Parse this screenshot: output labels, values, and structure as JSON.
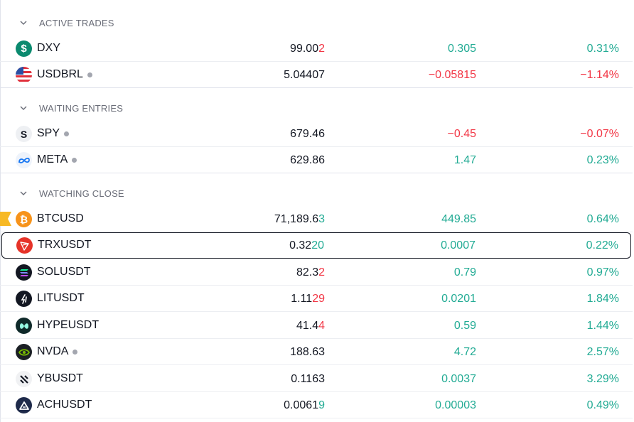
{
  "colors": {
    "positive": "#22ab94",
    "negative": "#f23645",
    "text": "#131722",
    "muted": "#6a6d78",
    "flag": "#f7b924"
  },
  "sections": [
    {
      "id": "active",
      "title": "ACTIVE TRADES"
    },
    {
      "id": "waiting",
      "title": "WAITING ENTRIES"
    },
    {
      "id": "watching",
      "title": "WATCHING CLOSE"
    }
  ],
  "rows": [
    {
      "symbol": "DXY",
      "last_main": "99.00",
      "last_tail": "2",
      "tail_dir": "neg",
      "change": "0.305",
      "change_pct": "0.31%",
      "dir": "pos",
      "icon": "dollar-icon",
      "dot": false
    },
    {
      "symbol": "USDBRL",
      "last_main": "5.04407",
      "last_tail": "",
      "tail_dir": "",
      "change": "−0.05815",
      "change_pct": "−1.14%",
      "dir": "neg",
      "icon": "us-flag-icon",
      "dot": true
    },
    {
      "symbol": "SPY",
      "last_main": "679.46",
      "last_tail": "",
      "tail_dir": "",
      "change": "−0.45",
      "change_pct": "−0.07%",
      "dir": "neg",
      "icon": "spy-logo-icon",
      "dot": true
    },
    {
      "symbol": "META",
      "last_main": "629.86",
      "last_tail": "",
      "tail_dir": "",
      "change": "1.47",
      "change_pct": "0.23%",
      "dir": "pos",
      "icon": "meta-logo-icon",
      "dot": true
    },
    {
      "symbol": "BTCUSD",
      "last_main": "71,189.6",
      "last_tail": "3",
      "tail_dir": "pos",
      "change": "449.85",
      "change_pct": "0.64%",
      "dir": "pos",
      "icon": "bitcoin-icon",
      "dot": false,
      "flagged": true
    },
    {
      "symbol": "TRXUSDT",
      "last_main": "0.32",
      "last_tail": "20",
      "tail_dir": "pos",
      "change": "0.0007",
      "change_pct": "0.22%",
      "dir": "pos",
      "icon": "tron-icon",
      "dot": false,
      "selected": true
    },
    {
      "symbol": "SOLUSDT",
      "last_main": "82.3",
      "last_tail": "2",
      "tail_dir": "neg",
      "change": "0.79",
      "change_pct": "0.97%",
      "dir": "pos",
      "icon": "solana-icon",
      "dot": false
    },
    {
      "symbol": "LITUSDT",
      "last_main": "1.11",
      "last_tail": "29",
      "tail_dir": "neg",
      "change": "0.0201",
      "change_pct": "1.84%",
      "dir": "pos",
      "icon": "lit-icon",
      "dot": false
    },
    {
      "symbol": "HYPEUSDT",
      "last_main": "41.4",
      "last_tail": "4",
      "tail_dir": "neg",
      "change": "0.59",
      "change_pct": "1.44%",
      "dir": "pos",
      "icon": "hype-icon",
      "dot": false
    },
    {
      "symbol": "NVDA",
      "last_main": "188.63",
      "last_tail": "",
      "tail_dir": "",
      "change": "4.72",
      "change_pct": "2.57%",
      "dir": "pos",
      "icon": "nvidia-icon",
      "dot": true
    },
    {
      "symbol": "YBUSDT",
      "last_main": "0.1163",
      "last_tail": "",
      "tail_dir": "",
      "change": "0.0037",
      "change_pct": "3.29%",
      "dir": "pos",
      "icon": "yb-icon",
      "dot": false
    },
    {
      "symbol": "ACHUSDT",
      "last_main": "0.0061",
      "last_tail": "9",
      "tail_dir": "pos",
      "change": "0.00003",
      "change_pct": "0.49%",
      "dir": "pos",
      "icon": "alchemy-icon",
      "dot": false
    }
  ]
}
